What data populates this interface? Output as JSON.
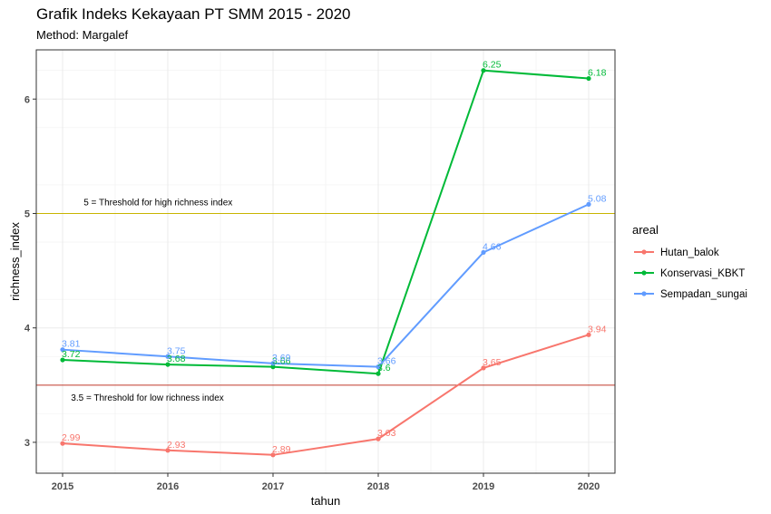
{
  "title": "Grafik Indeks Kekayaan PT SMM 2015 - 2020",
  "subtitle": "Method: Margalef",
  "chart_data": {
    "type": "line",
    "xlabel": "tahun",
    "ylabel": "richness_index",
    "x": [
      2015,
      2016,
      2017,
      2018,
      2019,
      2020
    ],
    "x_tick_labels": [
      "2015",
      "2016",
      "2017",
      "2018",
      "2019",
      "2020"
    ],
    "y_ticks": [
      3,
      4,
      5,
      6
    ],
    "y_tick_labels": [
      "3",
      "4",
      "5",
      "6"
    ],
    "xlim": [
      2014.75,
      2020.25
    ],
    "ylim": [
      2.73,
      6.43
    ],
    "grid": true,
    "legend": {
      "title": "areal",
      "position": "right"
    },
    "series": [
      {
        "name": "Hutan_balok",
        "color": "#F8766D",
        "values": [
          2.99,
          2.93,
          2.89,
          3.03,
          3.65,
          3.94
        ],
        "labels": [
          "2.99",
          "2.93",
          "2.89",
          "3.03",
          "3.65",
          "3.94"
        ]
      },
      {
        "name": "Konservasi_KBKT",
        "color": "#00BA38",
        "values": [
          3.72,
          3.68,
          3.66,
          3.6,
          6.25,
          6.18
        ],
        "labels": [
          "3.72",
          "3.68",
          "3.66",
          "3.6",
          "6.25",
          "6.18"
        ]
      },
      {
        "name": "Sempadan_sungai",
        "color": "#619CFF",
        "values": [
          3.81,
          3.75,
          3.69,
          3.66,
          4.66,
          5.08
        ],
        "labels": [
          "3.81",
          "3.75",
          "3.69",
          "3.66",
          "4.66",
          "5.08"
        ]
      }
    ],
    "reference_lines": [
      {
        "y": 5,
        "color": "#C8B400",
        "label": "5 = Threshold for high richness index"
      },
      {
        "y": 3.5,
        "color": "#C0392B",
        "label": "3.5 = Threshold for low richness index"
      }
    ]
  }
}
